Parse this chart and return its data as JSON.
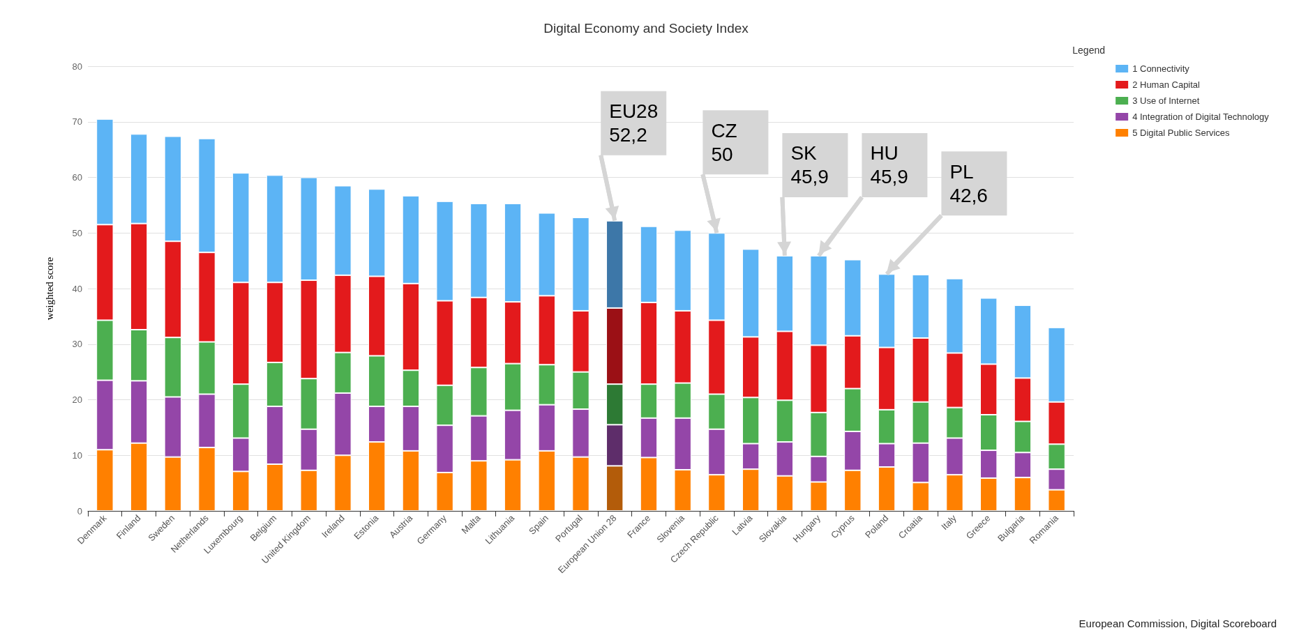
{
  "chart_data": {
    "type": "bar",
    "title": "Digital Economy and Society Index",
    "ylabel": "weighted score",
    "legend_title": "Legend",
    "stacked": true,
    "categories": [
      "Denmark",
      "Finland",
      "Sweden",
      "Netherlands",
      "Luxembourg",
      "Belgium",
      "United Kingdom",
      "Ireland",
      "Estonia",
      "Austria",
      "Germany",
      "Malta",
      "Lithuania",
      "Spain",
      "Portugal",
      "European Union 28",
      "France",
      "Slovenia",
      "Czech Republic",
      "Latvia",
      "Slovakia",
      "Hungary",
      "Cyprus",
      "Poland",
      "Croatia",
      "Italy",
      "Greece",
      "Bulgaria",
      "Romania"
    ],
    "series": [
      {
        "name": "5 Digital Public Services",
        "color": "#ff8000",
        "colors": [
          "#ff8000",
          "#ff8000",
          "#ff8000",
          "#ff8000",
          "#ff8000",
          "#ff8000",
          "#ff8000",
          "#ff8000",
          "#ff8000",
          "#ff8000",
          "#ff8000",
          "#ff8000",
          "#ff8000",
          "#ff8000",
          "#ff8000",
          "#b35c0a",
          "#ff8000",
          "#ff8000",
          "#ff8000",
          "#ff8000",
          "#ff8000",
          "#ff8000",
          "#ff8000",
          "#ff8000",
          "#ff8000",
          "#ff8000",
          "#ff8000",
          "#ff8000",
          "#ff8000"
        ],
        "values": [
          11,
          12.2,
          9.7,
          11.4,
          7.1,
          8.4,
          7.3,
          10,
          12.4,
          10.8,
          6.9,
          9,
          9.2,
          10.8,
          9.7,
          8.1,
          9.6,
          7.4,
          6.5,
          7.5,
          6.3,
          5.2,
          7.3,
          7.9,
          5.1,
          6.5,
          5.9,
          6,
          3.8
        ]
      },
      {
        "name": "4 Integration of Digital Technology",
        "color": "#9446a8",
        "colors": [
          "#9446a8",
          "#9446a8",
          "#9446a8",
          "#9446a8",
          "#9446a8",
          "#9446a8",
          "#9446a8",
          "#9446a8",
          "#9446a8",
          "#9446a8",
          "#9446a8",
          "#9446a8",
          "#9446a8",
          "#9446a8",
          "#9446a8",
          "#5e2d6a",
          "#9446a8",
          "#9446a8",
          "#9446a8",
          "#9446a8",
          "#9446a8",
          "#9446a8",
          "#9446a8",
          "#9446a8",
          "#9446a8",
          "#9446a8",
          "#9446a8",
          "#9446a8",
          "#9446a8"
        ],
        "values": [
          12.5,
          11.2,
          10.8,
          9.6,
          6,
          10.4,
          7.4,
          11.2,
          6.4,
          8,
          8.5,
          8.1,
          8.9,
          8.3,
          8.6,
          7.4,
          7.1,
          9.3,
          8.2,
          4.6,
          6.1,
          4.6,
          7,
          4.2,
          7.1,
          6.6,
          5,
          4.5,
          3.7
        ]
      },
      {
        "name": "3 Use of Internet",
        "color": "#4caf50",
        "colors": [
          "#4caf50",
          "#4caf50",
          "#4caf50",
          "#4caf50",
          "#4caf50",
          "#4caf50",
          "#4caf50",
          "#4caf50",
          "#4caf50",
          "#4caf50",
          "#4caf50",
          "#4caf50",
          "#4caf50",
          "#4caf50",
          "#4caf50",
          "#2d7a34",
          "#4caf50",
          "#4caf50",
          "#4caf50",
          "#4caf50",
          "#4caf50",
          "#4caf50",
          "#4caf50",
          "#4caf50",
          "#4caf50",
          "#4caf50",
          "#4caf50",
          "#4caf50",
          "#4caf50"
        ],
        "values": [
          10.8,
          9.2,
          10.7,
          9.4,
          9.7,
          7.9,
          9.1,
          7.3,
          9.1,
          6.5,
          7.2,
          8.7,
          8.4,
          7.2,
          6.7,
          7.3,
          6.1,
          6.3,
          6.3,
          8.3,
          7.5,
          7.9,
          7.7,
          6.1,
          7.4,
          5.5,
          6.4,
          5.6,
          4.5
        ]
      },
      {
        "name": "2 Human Capital",
        "color": "#e31a1c",
        "colors": [
          "#e31a1c",
          "#e31a1c",
          "#e31a1c",
          "#e31a1c",
          "#e31a1c",
          "#e31a1c",
          "#e31a1c",
          "#e31a1c",
          "#e31a1c",
          "#e31a1c",
          "#e31a1c",
          "#e31a1c",
          "#e31a1c",
          "#e31a1c",
          "#e31a1c",
          "#9b1015",
          "#e31a1c",
          "#e31a1c",
          "#e31a1c",
          "#e31a1c",
          "#e31a1c",
          "#e31a1c",
          "#e31a1c",
          "#e31a1c",
          "#e31a1c",
          "#e31a1c",
          "#e31a1c",
          "#e31a1c",
          "#e31a1c"
        ],
        "values": [
          17.2,
          19.1,
          17.3,
          16.1,
          18.3,
          14.4,
          17.7,
          13.9,
          14.3,
          15.6,
          15.2,
          12.6,
          11.1,
          12.4,
          11,
          13.7,
          14.7,
          13,
          13.3,
          10.9,
          12.4,
          12.1,
          9.5,
          11.2,
          11.5,
          9.8,
          9.1,
          7.8,
          7.6
        ]
      },
      {
        "name": "1 Connectivity",
        "color": "#5cb4f5",
        "colors": [
          "#5cb4f5",
          "#5cb4f5",
          "#5cb4f5",
          "#5cb4f5",
          "#5cb4f5",
          "#5cb4f5",
          "#5cb4f5",
          "#5cb4f5",
          "#5cb4f5",
          "#5cb4f5",
          "#5cb4f5",
          "#5cb4f5",
          "#5cb4f5",
          "#5cb4f5",
          "#5cb4f5",
          "#3d77a8",
          "#5cb4f5",
          "#5cb4f5",
          "#5cb4f5",
          "#5cb4f5",
          "#5cb4f5",
          "#5cb4f5",
          "#5cb4f5",
          "#5cb4f5",
          "#5cb4f5",
          "#5cb4f5",
          "#5cb4f5",
          "#5cb4f5",
          "#5cb4f5"
        ],
        "values": [
          19,
          16.1,
          18.9,
          20.5,
          19.7,
          19.3,
          18.5,
          16.1,
          15.7,
          15.8,
          17.9,
          16.9,
          17.7,
          14.9,
          16.8,
          15.7,
          13.7,
          14.5,
          15.7,
          15.8,
          13.6,
          16.1,
          13.7,
          13.2,
          11.4,
          13.4,
          11.9,
          13.1,
          13.4
        ]
      }
    ],
    "ylim": [
      0,
      80
    ],
    "yticks": [
      0,
      10,
      20,
      30,
      40,
      50,
      60,
      70,
      80
    ],
    "grid": "y",
    "legend": "top right",
    "annotations": [
      {
        "text": "EU28\n52,2",
        "x": "European Union 28",
        "y": 52.2
      },
      {
        "text": "CZ\n50",
        "x": "Czech Republic",
        "y": 50
      },
      {
        "text": "SK\n45,9",
        "x": "Slovakia",
        "y": 45.9
      },
      {
        "text": "HU\n45,9",
        "x": "Hungary",
        "y": 45.9
      },
      {
        "text": "PL\n42,6",
        "x": "Poland",
        "y": 42.6
      },
      "European Commission, Digital Scoreboard"
    ]
  }
}
